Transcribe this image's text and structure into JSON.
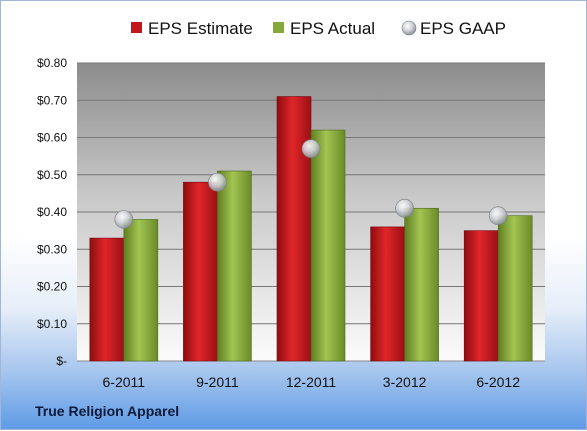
{
  "company": "True Religion Apparel",
  "chart_data": {
    "type": "bar",
    "title": "",
    "xlabel": "",
    "ylabel": "",
    "categories": [
      "6-2011",
      "9-2011",
      "12-2011",
      "3-2012",
      "6-2012"
    ],
    "series": [
      {
        "name": "EPS Estimate",
        "kind": "bar",
        "color": "#c0181c",
        "values": [
          0.33,
          0.48,
          0.71,
          0.36,
          0.35
        ]
      },
      {
        "name": "EPS Actual",
        "kind": "bar",
        "color": "#86a83a",
        "values": [
          0.38,
          0.51,
          0.62,
          0.41,
          0.39
        ]
      },
      {
        "name": "EPS GAAP",
        "kind": "marker",
        "color": "#b8bcc2",
        "values": [
          0.38,
          0.48,
          0.57,
          0.41,
          0.39
        ]
      }
    ],
    "ylim": [
      0,
      0.8
    ],
    "yticks": [
      0,
      0.1,
      0.2,
      0.3,
      0.4,
      0.5,
      0.6,
      0.7,
      0.8
    ],
    "ytick_labels": [
      "$-",
      "$0.10",
      "$0.20",
      "$0.30",
      "$0.40",
      "$0.50",
      "$0.60",
      "$0.70",
      "$0.80"
    ],
    "grid": true,
    "legend": "top"
  }
}
